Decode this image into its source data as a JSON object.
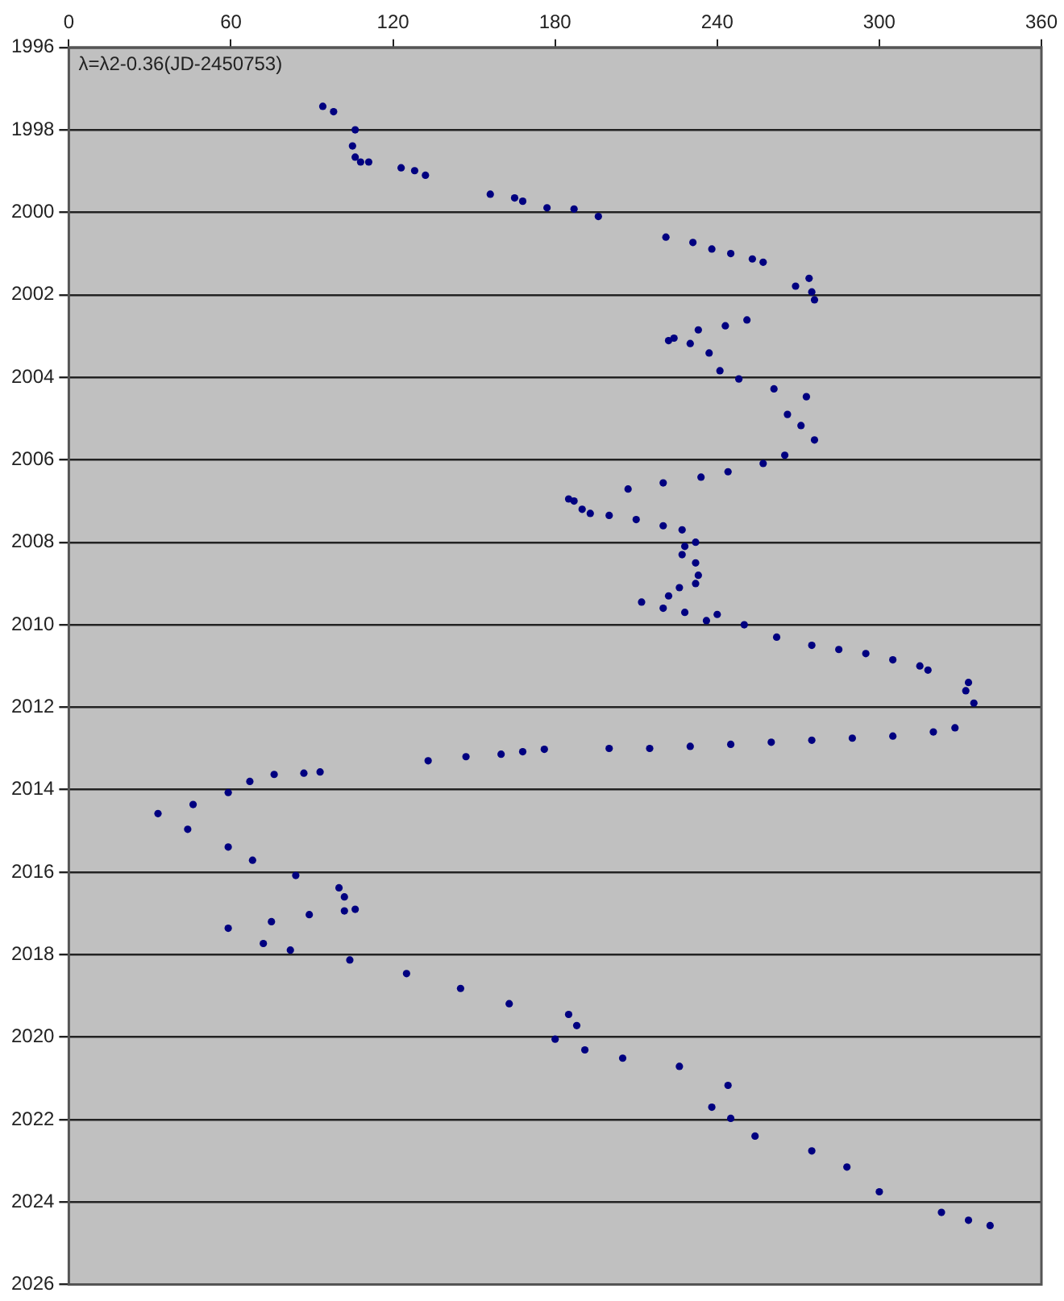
{
  "chart_data": {
    "type": "scatter",
    "annotations": [
      "λ=λ2-0.36(JD-2450753)"
    ],
    "series": [
      {
        "color": "#000080",
        "x": [
          94,
          98,
          106,
          105,
          106,
          108,
          111,
          123,
          128,
          132,
          156,
          165,
          168,
          177,
          187,
          196,
          221,
          231,
          238,
          245,
          253,
          257,
          269,
          274,
          276,
          275,
          251,
          243,
          233,
          224,
          222,
          230,
          237,
          241,
          248,
          261,
          273,
          266,
          271,
          276,
          265,
          257,
          244,
          234,
          220,
          207,
          185,
          187,
          190,
          193,
          200,
          210,
          220,
          227,
          232,
          228,
          227,
          232,
          233,
          232,
          226,
          222,
          212,
          220,
          228,
          240,
          236,
          250,
          262,
          275,
          285,
          295,
          305,
          315,
          318,
          333,
          332,
          335,
          328,
          320,
          305,
          290,
          275,
          260,
          245,
          230,
          215,
          200,
          176,
          168,
          160,
          147,
          133,
          93,
          87,
          76,
          67,
          59,
          46,
          33,
          44,
          59,
          68,
          84,
          100,
          102,
          106,
          102,
          89,
          75,
          59,
          72,
          82,
          104,
          125,
          145,
          163,
          185,
          188,
          180,
          191,
          205,
          226,
          244,
          238,
          245,
          254,
          275,
          288,
          300,
          323,
          333,
          341
        ],
        "values": [
          1997.43,
          1997.56,
          1998.0,
          1998.39,
          1998.66,
          1998.78,
          1998.78,
          1998.92,
          1998.99,
          1999.1,
          1999.56,
          1999.65,
          1999.73,
          1999.89,
          1999.92,
          2000.1,
          2000.6,
          2000.73,
          2000.89,
          2001.0,
          2001.13,
          2001.21,
          2001.79,
          2001.6,
          2002.12,
          2001.93,
          2002.61,
          2002.75,
          2002.85,
          2003.05,
          2003.11,
          2003.18,
          2003.41,
          2003.84,
          2004.04,
          2004.28,
          2004.47,
          2004.9,
          2005.17,
          2005.52,
          2005.89,
          2006.09,
          2006.29,
          2006.42,
          2006.56,
          2006.71,
          2006.95,
          2007.0,
          2007.2,
          2007.3,
          2007.35,
          2007.45,
          2007.6,
          2007.7,
          2008.0,
          2008.1,
          2008.3,
          2008.5,
          2008.8,
          2009.0,
          2009.1,
          2009.3,
          2009.45,
          2009.6,
          2009.7,
          2009.75,
          2009.9,
          2010.0,
          2010.3,
          2010.5,
          2010.6,
          2010.7,
          2010.85,
          2011.0,
          2011.1,
          2011.4,
          2011.6,
          2011.9,
          2012.5,
          2012.6,
          2012.7,
          2012.75,
          2012.8,
          2012.85,
          2012.9,
          2012.95,
          2013.0,
          2013.0,
          2013.02,
          2013.08,
          2013.14,
          2013.2,
          2013.3,
          2013.57,
          2013.6,
          2013.63,
          2013.8,
          2014.07,
          2014.36,
          2014.58,
          2014.96,
          2015.39,
          2015.71,
          2016.08,
          2016.38,
          2016.6,
          2016.9,
          2016.94,
          2017.03,
          2017.2,
          2017.36,
          2017.73,
          2017.89,
          2018.13,
          2018.46,
          2018.82,
          2019.19,
          2019.45,
          2019.72,
          2020.05,
          2020.31,
          2020.51,
          2020.71,
          2021.17,
          2021.7,
          2021.97,
          2022.4,
          2022.76,
          2023.15,
          2023.75,
          2024.25,
          2024.44,
          2024.57
        ]
      }
    ],
    "xlim": [
      0,
      360
    ],
    "xticks": [
      0,
      60,
      120,
      180,
      240,
      300,
      360
    ],
    "ylim": [
      2026,
      1996
    ],
    "yticks": [
      1996,
      1998,
      2000,
      2002,
      2004,
      2006,
      2008,
      2010,
      2012,
      2014,
      2016,
      2018,
      2020,
      2022,
      2024,
      2026
    ],
    "grid": "y",
    "marker": "circle",
    "legend": false
  }
}
